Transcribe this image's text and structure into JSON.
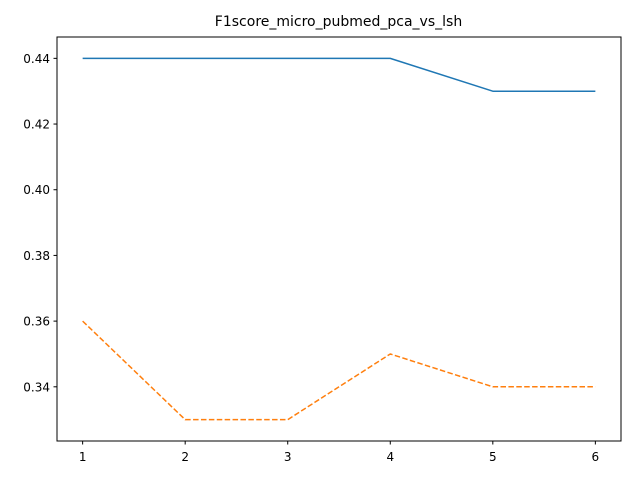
{
  "chart_data": {
    "type": "line",
    "title": "F1score_micro_pubmed_pca_vs_lsh",
    "xlabel": "",
    "ylabel": "",
    "x": [
      1,
      2,
      3,
      4,
      5,
      6
    ],
    "xlim": [
      0.75,
      6.25
    ],
    "ylim": [
      0.3235,
      0.4465
    ],
    "xticks": [
      1,
      2,
      3,
      4,
      5,
      6
    ],
    "xtick_labels": [
      "1",
      "2",
      "3",
      "4",
      "5",
      "6"
    ],
    "yticks": [
      0.34,
      0.36,
      0.38,
      0.4,
      0.42,
      0.44
    ],
    "ytick_labels": [
      "0.34",
      "0.36",
      "0.38",
      "0.40",
      "0.42",
      "0.44"
    ],
    "grid": false,
    "legend": "none",
    "series": [
      {
        "values": [
          0.44,
          0.44,
          0.44,
          0.44,
          0.43,
          0.43
        ],
        "color": "#1f77b4",
        "line_style": "solid"
      },
      {
        "values": [
          0.36,
          0.33,
          0.33,
          0.35,
          0.34,
          0.34
        ],
        "color": "#ff7f0e",
        "line_style": "dashed"
      }
    ]
  }
}
